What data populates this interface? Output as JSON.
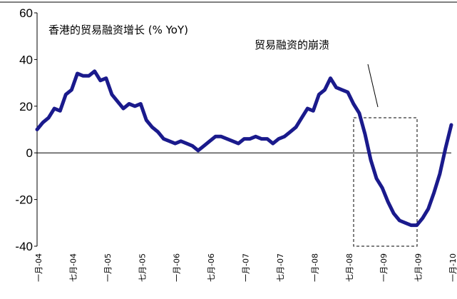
{
  "chart_data": {
    "type": "line",
    "title": "香港的贸易融资增长 (% YoY)",
    "annotation": "贸易融资的崩溃",
    "categories": [
      "一月-04",
      null,
      null,
      null,
      null,
      null,
      "七月-04",
      null,
      null,
      null,
      null,
      null,
      "一月-05",
      null,
      null,
      null,
      null,
      null,
      "七月-05",
      null,
      null,
      null,
      null,
      null,
      "一月-06",
      null,
      null,
      null,
      null,
      null,
      "七月-06",
      null,
      null,
      null,
      null,
      null,
      "一月-07",
      null,
      null,
      null,
      null,
      null,
      "七月-07",
      null,
      null,
      null,
      null,
      null,
      "一月-08",
      null,
      null,
      null,
      null,
      null,
      "七月-08",
      null,
      null,
      null,
      null,
      null,
      "一月-09",
      null,
      null,
      null,
      null,
      null,
      "七月-09",
      null,
      null,
      null,
      null,
      null,
      "一月-10"
    ],
    "series": [
      {
        "color": "#1a1a8c",
        "values": [
          10,
          13,
          15,
          19,
          18,
          25,
          27,
          34,
          33,
          33,
          35,
          31,
          32,
          25,
          22,
          19,
          21,
          20,
          21,
          14,
          11,
          9,
          6,
          5,
          4,
          5,
          4,
          3,
          1,
          3,
          5,
          7,
          7,
          6,
          5,
          4,
          6,
          6,
          7,
          6,
          6,
          4,
          6,
          7,
          9,
          11,
          15,
          19,
          18,
          25,
          27,
          32,
          28,
          27,
          26,
          21,
          17,
          8,
          -3,
          -11,
          -15,
          -21,
          -26,
          -29,
          -30,
          -31,
          -31,
          -28,
          -24,
          -17,
          -9,
          2,
          12
        ]
      }
    ],
    "ylim": [
      -40,
      60
    ],
    "yticks": [
      -40,
      -20,
      0,
      20,
      40,
      60
    ]
  }
}
